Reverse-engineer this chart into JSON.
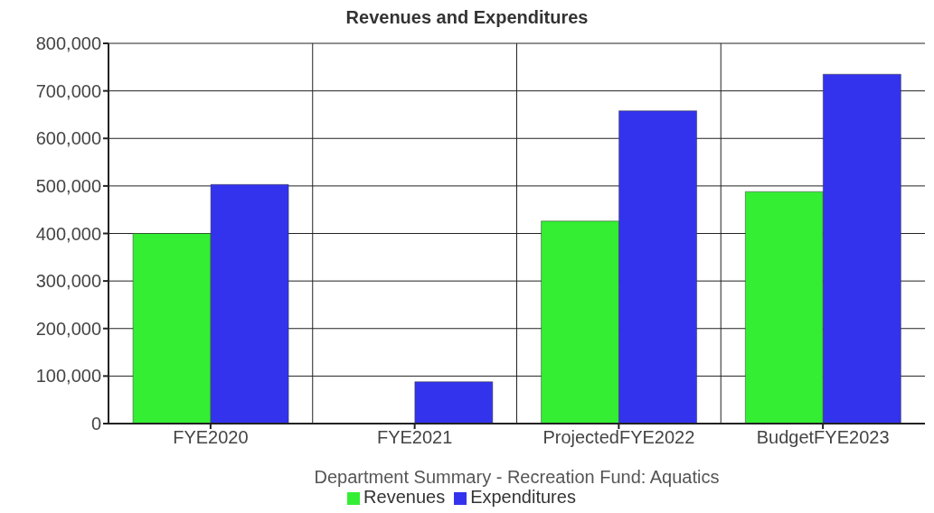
{
  "chart_data": {
    "type": "bar",
    "title": "Revenues and Expenditures",
    "xlabel": "Department Summary - Recreation Fund: Aquatics",
    "categories": [
      "FYE2020",
      "FYE2021",
      "ProjectedFYE2022",
      "BudgetFYE2023"
    ],
    "series": [
      {
        "name": "Revenues",
        "color": "#33ee33",
        "values": [
          400000,
          null,
          426000,
          488000
        ]
      },
      {
        "name": "Expenditures",
        "color": "#3333ee",
        "values": [
          503000,
          88000,
          658000,
          735000
        ]
      }
    ],
    "ylim": [
      0,
      800000
    ],
    "yticks": [
      0,
      {
        "value": 100000,
        "label": "100,000"
      },
      {
        "value": 200000,
        "label": "200,000"
      },
      {
        "value": 300000,
        "label": "300,000"
      },
      {
        "value": 400000,
        "label": "400,000"
      },
      {
        "value": 500000,
        "label": "500,000"
      },
      {
        "value": 600000,
        "label": "600,000"
      },
      {
        "value": 700000,
        "label": "700,000"
      },
      {
        "value": 800000,
        "label": "800,000"
      }
    ],
    "grid": true,
    "legend": "bottom"
  }
}
